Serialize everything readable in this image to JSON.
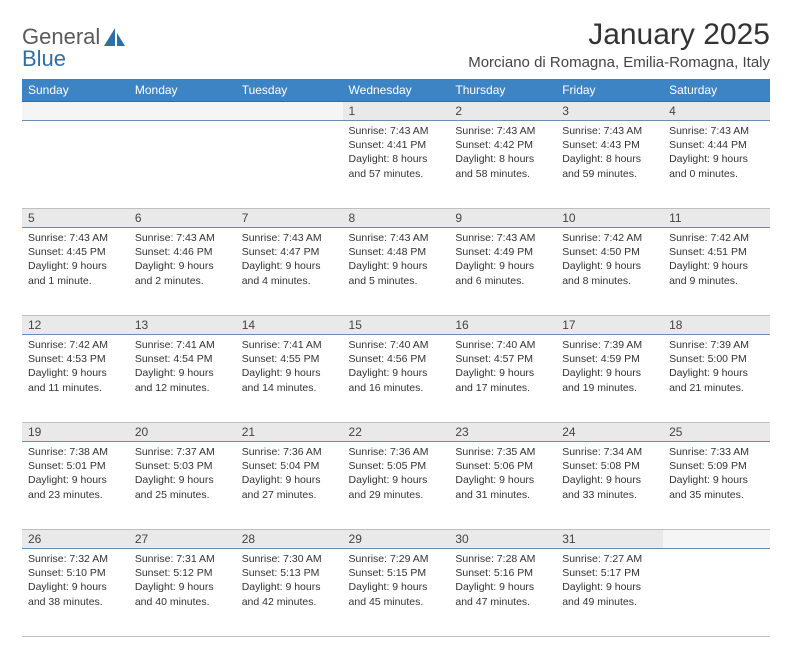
{
  "logo": {
    "part1": "General",
    "part2": "Blue"
  },
  "title": "January 2025",
  "location": "Morciano di Romagna, Emilia-Romagna, Italy",
  "colors": {
    "header_bg": "#3d84c5",
    "header_border": "#2f6fa8",
    "daynum_bg": "#e9e9e9",
    "daynum_border": "#6b8db0",
    "row_border": "#bfbfbf",
    "text": "#333333",
    "logo_gray": "#5a5a5a",
    "logo_blue": "#2f6fa8",
    "background": "#ffffff"
  },
  "typography": {
    "title_fontsize": 30,
    "location_fontsize": 15,
    "dayhead_fontsize": 12,
    "daynum_fontsize": 12,
    "cell_fontsize": 10.5,
    "logo_fontsize": 22
  },
  "dayHeaders": [
    "Sunday",
    "Monday",
    "Tuesday",
    "Wednesday",
    "Thursday",
    "Friday",
    "Saturday"
  ],
  "weeks": [
    [
      null,
      null,
      null,
      {
        "n": "1",
        "sunrise": "Sunrise: 7:43 AM",
        "sunset": "Sunset: 4:41 PM",
        "daylight": "Daylight: 8 hours and 57 minutes."
      },
      {
        "n": "2",
        "sunrise": "Sunrise: 7:43 AM",
        "sunset": "Sunset: 4:42 PM",
        "daylight": "Daylight: 8 hours and 58 minutes."
      },
      {
        "n": "3",
        "sunrise": "Sunrise: 7:43 AM",
        "sunset": "Sunset: 4:43 PM",
        "daylight": "Daylight: 8 hours and 59 minutes."
      },
      {
        "n": "4",
        "sunrise": "Sunrise: 7:43 AM",
        "sunset": "Sunset: 4:44 PM",
        "daylight": "Daylight: 9 hours and 0 minutes."
      }
    ],
    [
      {
        "n": "5",
        "sunrise": "Sunrise: 7:43 AM",
        "sunset": "Sunset: 4:45 PM",
        "daylight": "Daylight: 9 hours and 1 minute."
      },
      {
        "n": "6",
        "sunrise": "Sunrise: 7:43 AM",
        "sunset": "Sunset: 4:46 PM",
        "daylight": "Daylight: 9 hours and 2 minutes."
      },
      {
        "n": "7",
        "sunrise": "Sunrise: 7:43 AM",
        "sunset": "Sunset: 4:47 PM",
        "daylight": "Daylight: 9 hours and 4 minutes."
      },
      {
        "n": "8",
        "sunrise": "Sunrise: 7:43 AM",
        "sunset": "Sunset: 4:48 PM",
        "daylight": "Daylight: 9 hours and 5 minutes."
      },
      {
        "n": "9",
        "sunrise": "Sunrise: 7:43 AM",
        "sunset": "Sunset: 4:49 PM",
        "daylight": "Daylight: 9 hours and 6 minutes."
      },
      {
        "n": "10",
        "sunrise": "Sunrise: 7:42 AM",
        "sunset": "Sunset: 4:50 PM",
        "daylight": "Daylight: 9 hours and 8 minutes."
      },
      {
        "n": "11",
        "sunrise": "Sunrise: 7:42 AM",
        "sunset": "Sunset: 4:51 PM",
        "daylight": "Daylight: 9 hours and 9 minutes."
      }
    ],
    [
      {
        "n": "12",
        "sunrise": "Sunrise: 7:42 AM",
        "sunset": "Sunset: 4:53 PM",
        "daylight": "Daylight: 9 hours and 11 minutes."
      },
      {
        "n": "13",
        "sunrise": "Sunrise: 7:41 AM",
        "sunset": "Sunset: 4:54 PM",
        "daylight": "Daylight: 9 hours and 12 minutes."
      },
      {
        "n": "14",
        "sunrise": "Sunrise: 7:41 AM",
        "sunset": "Sunset: 4:55 PM",
        "daylight": "Daylight: 9 hours and 14 minutes."
      },
      {
        "n": "15",
        "sunrise": "Sunrise: 7:40 AM",
        "sunset": "Sunset: 4:56 PM",
        "daylight": "Daylight: 9 hours and 16 minutes."
      },
      {
        "n": "16",
        "sunrise": "Sunrise: 7:40 AM",
        "sunset": "Sunset: 4:57 PM",
        "daylight": "Daylight: 9 hours and 17 minutes."
      },
      {
        "n": "17",
        "sunrise": "Sunrise: 7:39 AM",
        "sunset": "Sunset: 4:59 PM",
        "daylight": "Daylight: 9 hours and 19 minutes."
      },
      {
        "n": "18",
        "sunrise": "Sunrise: 7:39 AM",
        "sunset": "Sunset: 5:00 PM",
        "daylight": "Daylight: 9 hours and 21 minutes."
      }
    ],
    [
      {
        "n": "19",
        "sunrise": "Sunrise: 7:38 AM",
        "sunset": "Sunset: 5:01 PM",
        "daylight": "Daylight: 9 hours and 23 minutes."
      },
      {
        "n": "20",
        "sunrise": "Sunrise: 7:37 AM",
        "sunset": "Sunset: 5:03 PM",
        "daylight": "Daylight: 9 hours and 25 minutes."
      },
      {
        "n": "21",
        "sunrise": "Sunrise: 7:36 AM",
        "sunset": "Sunset: 5:04 PM",
        "daylight": "Daylight: 9 hours and 27 minutes."
      },
      {
        "n": "22",
        "sunrise": "Sunrise: 7:36 AM",
        "sunset": "Sunset: 5:05 PM",
        "daylight": "Daylight: 9 hours and 29 minutes."
      },
      {
        "n": "23",
        "sunrise": "Sunrise: 7:35 AM",
        "sunset": "Sunset: 5:06 PM",
        "daylight": "Daylight: 9 hours and 31 minutes."
      },
      {
        "n": "24",
        "sunrise": "Sunrise: 7:34 AM",
        "sunset": "Sunset: 5:08 PM",
        "daylight": "Daylight: 9 hours and 33 minutes."
      },
      {
        "n": "25",
        "sunrise": "Sunrise: 7:33 AM",
        "sunset": "Sunset: 5:09 PM",
        "daylight": "Daylight: 9 hours and 35 minutes."
      }
    ],
    [
      {
        "n": "26",
        "sunrise": "Sunrise: 7:32 AM",
        "sunset": "Sunset: 5:10 PM",
        "daylight": "Daylight: 9 hours and 38 minutes."
      },
      {
        "n": "27",
        "sunrise": "Sunrise: 7:31 AM",
        "sunset": "Sunset: 5:12 PM",
        "daylight": "Daylight: 9 hours and 40 minutes."
      },
      {
        "n": "28",
        "sunrise": "Sunrise: 7:30 AM",
        "sunset": "Sunset: 5:13 PM",
        "daylight": "Daylight: 9 hours and 42 minutes."
      },
      {
        "n": "29",
        "sunrise": "Sunrise: 7:29 AM",
        "sunset": "Sunset: 5:15 PM",
        "daylight": "Daylight: 9 hours and 45 minutes."
      },
      {
        "n": "30",
        "sunrise": "Sunrise: 7:28 AM",
        "sunset": "Sunset: 5:16 PM",
        "daylight": "Daylight: 9 hours and 47 minutes."
      },
      {
        "n": "31",
        "sunrise": "Sunrise: 7:27 AM",
        "sunset": "Sunset: 5:17 PM",
        "daylight": "Daylight: 9 hours and 49 minutes."
      },
      null
    ]
  ]
}
